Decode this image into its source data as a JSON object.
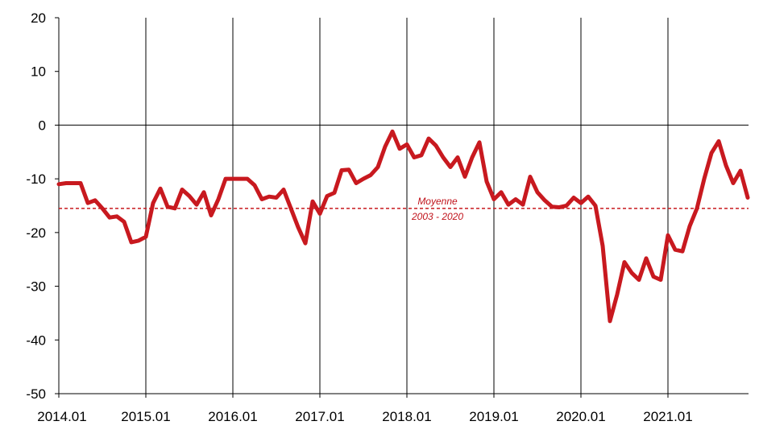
{
  "chart_data": {
    "type": "line",
    "title": "",
    "xlabel": "",
    "ylabel": "",
    "ylim": [
      -50,
      20
    ],
    "yticks": [
      20,
      10,
      0,
      -10,
      -20,
      -30,
      -40,
      -50
    ],
    "xticks": [
      "2014.01",
      "2015.01",
      "2016.01",
      "2017.01",
      "2018.01",
      "2019.01",
      "2020.01",
      "2021.01"
    ],
    "grid": "vertical lines at each year",
    "line_color": "#c8191f",
    "reference_line": {
      "value": -15.5,
      "label_line1": "Moyenne",
      "label_line2": "2003 - 2020",
      "color": "#c8191f",
      "style": "dashed"
    },
    "series": [
      {
        "start": "2014.01",
        "frequency": "monthly",
        "values": [
          -11.0,
          -10.8,
          -10.8,
          -10.8,
          -14.5,
          -14.0,
          -15.5,
          -17.2,
          -17.0,
          -18.0,
          -21.8,
          -21.5,
          -20.8,
          -14.5,
          -11.8,
          -15.2,
          -15.5,
          -12.0,
          -13.2,
          -14.8,
          -12.5,
          -16.8,
          -13.8,
          -10.0,
          -10.0,
          -10.0,
          -10.0,
          -11.2,
          -13.8,
          -13.3,
          -13.5,
          -12.0,
          -15.5,
          -19.0,
          -22.0,
          -14.2,
          -16.5,
          -13.2,
          -12.6,
          -8.4,
          -8.3,
          -10.8,
          -10.0,
          -9.3,
          -7.8,
          -4.0,
          -1.2,
          -4.4,
          -3.6,
          -6.0,
          -5.6,
          -2.5,
          -3.8,
          -6.0,
          -7.8,
          -6.0,
          -9.6,
          -6.0,
          -3.2,
          -10.5,
          -13.8,
          -12.5,
          -14.8,
          -13.8,
          -14.8,
          -9.6,
          -12.5,
          -14.0,
          -15.2,
          -15.3,
          -15.0,
          -13.5,
          -14.5,
          -13.3,
          -15.0,
          -22.5,
          -36.5,
          -31.5,
          -25.5,
          -27.5,
          -28.8,
          -24.8,
          -28.2,
          -28.8,
          -20.5,
          -23.2,
          -23.5,
          -18.8,
          -15.5,
          -10.0,
          -5.2,
          -3.0,
          -7.5,
          -10.8,
          -8.5,
          -13.5
        ]
      }
    ]
  }
}
